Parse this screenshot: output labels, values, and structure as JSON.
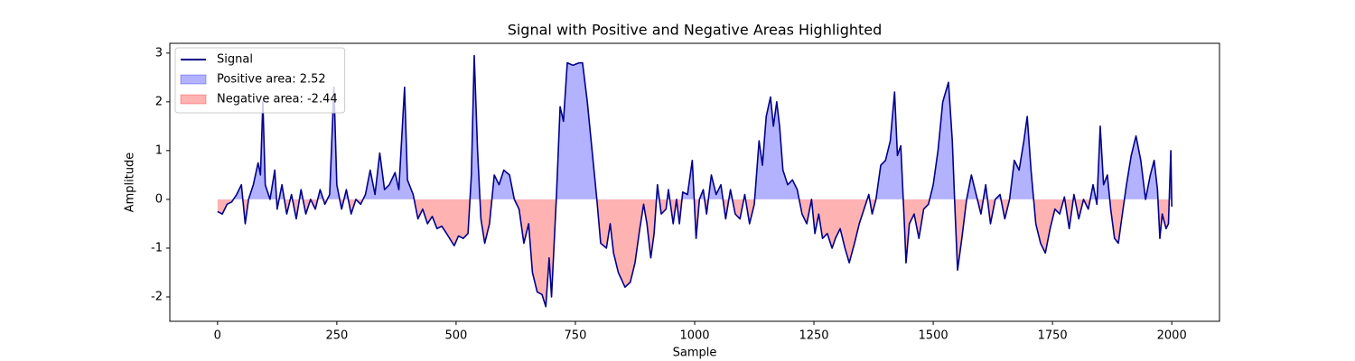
{
  "chart_data": {
    "type": "line",
    "title": "Signal with Positive and Negative Areas Highlighted",
    "xlabel": "Sample",
    "ylabel": "Amplitude",
    "xlim": [
      -100,
      2100
    ],
    "ylim": [
      -2.5,
      3.2
    ],
    "xticks": [
      0,
      250,
      500,
      750,
      1000,
      1250,
      1500,
      1750,
      2000
    ],
    "yticks": [
      -2,
      -1,
      0,
      1,
      2,
      3
    ],
    "legend": "upper left",
    "x": [
      0,
      10,
      20,
      30,
      40,
      50,
      58,
      65,
      75,
      85,
      90,
      95,
      100,
      110,
      120,
      125,
      135,
      145,
      155,
      165,
      175,
      185,
      195,
      205,
      215,
      225,
      235,
      244,
      250,
      260,
      270,
      280,
      290,
      300,
      310,
      320,
      330,
      340,
      350,
      360,
      372,
      380,
      392,
      398,
      410,
      420,
      430,
      440,
      450,
      460,
      470,
      480,
      496,
      505,
      515,
      525,
      532,
      538,
      545,
      552,
      560,
      570,
      580,
      590,
      600,
      612,
      622,
      632,
      642,
      652,
      660,
      670,
      680,
      688,
      695,
      700,
      710,
      718,
      725,
      733,
      745,
      758,
      765,
      775,
      785,
      795,
      803,
      815,
      823,
      830,
      840,
      854,
      865,
      875,
      885,
      893,
      900,
      908,
      915,
      922,
      930,
      940,
      945,
      955,
      962,
      968,
      975,
      985,
      995,
      1003,
      1010,
      1018,
      1025,
      1035,
      1045,
      1055,
      1065,
      1075,
      1085,
      1095,
      1105,
      1115,
      1125,
      1135,
      1142,
      1150,
      1159,
      1165,
      1172,
      1178,
      1185,
      1195,
      1205,
      1215,
      1225,
      1235,
      1245,
      1252,
      1260,
      1268,
      1278,
      1288,
      1295,
      1305,
      1315,
      1324,
      1335,
      1345,
      1355,
      1365,
      1372,
      1380,
      1390,
      1400,
      1410,
      1419,
      1425,
      1432,
      1440,
      1443,
      1450,
      1460,
      1470,
      1480,
      1490,
      1500,
      1510,
      1520,
      1532,
      1540,
      1546,
      1551,
      1560,
      1570,
      1580,
      1590,
      1600,
      1610,
      1620,
      1630,
      1640,
      1650,
      1660,
      1670,
      1680,
      1690,
      1697,
      1705,
      1715,
      1725,
      1735,
      1745,
      1755,
      1765,
      1775,
      1785,
      1795,
      1805,
      1815,
      1825,
      1835,
      1843,
      1850,
      1857,
      1865,
      1872,
      1880,
      1888,
      1895,
      1905,
      1915,
      1925,
      1935,
      1945,
      1955,
      1963,
      1970,
      1975,
      1980,
      1988,
      1993,
      1998,
      2000
    ],
    "series": [
      {
        "name": "Signal",
        "color": "#00008b",
        "values": [
          -0.25,
          -0.3,
          -0.1,
          -0.05,
          0.1,
          0.3,
          -0.5,
          0.0,
          0.3,
          0.75,
          0.5,
          2.0,
          0.3,
          0.0,
          0.6,
          -0.2,
          0.3,
          -0.3,
          0.1,
          -0.4,
          0.2,
          -0.3,
          0.0,
          -0.2,
          0.2,
          -0.1,
          0.1,
          2.3,
          0.3,
          -0.2,
          0.2,
          -0.3,
          0.0,
          -0.1,
          0.1,
          0.6,
          0.1,
          0.95,
          0.2,
          0.3,
          0.55,
          0.2,
          2.3,
          0.4,
          0.1,
          -0.4,
          -0.2,
          -0.5,
          -0.35,
          -0.6,
          -0.55,
          -0.7,
          -0.95,
          -0.75,
          -0.8,
          -0.7,
          0.5,
          2.95,
          1.0,
          -0.4,
          -0.9,
          -0.5,
          0.5,
          0.3,
          0.6,
          0.5,
          0.0,
          -0.2,
          -0.9,
          -0.5,
          -1.5,
          -1.9,
          -1.95,
          -2.2,
          -1.2,
          -2.0,
          0.0,
          1.9,
          1.6,
          2.8,
          2.75,
          2.8,
          2.8,
          2.0,
          1.0,
          0.0,
          -0.9,
          -1.0,
          -0.5,
          -1.1,
          -1.5,
          -1.8,
          -1.7,
          -1.3,
          -0.6,
          -0.1,
          -0.5,
          -1.2,
          -0.7,
          0.3,
          -0.3,
          -0.2,
          0.2,
          -0.5,
          0.0,
          -0.5,
          0.15,
          0.1,
          0.8,
          -0.8,
          0.0,
          0.2,
          -0.3,
          0.5,
          0.1,
          0.3,
          -0.4,
          0.2,
          -0.3,
          -0.4,
          0.1,
          -0.5,
          -0.1,
          1.2,
          0.7,
          1.7,
          2.1,
          1.5,
          2.0,
          1.5,
          0.6,
          0.3,
          0.4,
          0.2,
          -0.3,
          -0.5,
          0.0,
          -0.7,
          -0.3,
          -0.8,
          -0.7,
          -1.0,
          -0.8,
          -0.6,
          -1.0,
          -1.3,
          -0.9,
          -0.5,
          -0.2,
          0.1,
          -0.3,
          0.0,
          0.7,
          0.8,
          1.2,
          2.2,
          0.9,
          1.1,
          -0.6,
          -1.3,
          -0.5,
          -0.3,
          -0.8,
          -0.2,
          -0.1,
          0.3,
          1.0,
          2.0,
          2.4,
          1.2,
          -0.3,
          -1.45,
          -0.8,
          0.0,
          0.5,
          0.1,
          -0.3,
          0.3,
          -0.5,
          0.0,
          0.1,
          -0.4,
          0.0,
          0.8,
          0.6,
          1.2,
          1.7,
          0.6,
          -0.5,
          -0.9,
          -1.1,
          -0.6,
          -0.2,
          -0.3,
          0.05,
          -0.6,
          0.1,
          -0.4,
          0.0,
          -0.2,
          0.3,
          -0.1,
          1.5,
          0.3,
          0.5,
          -0.2,
          -0.8,
          -0.9,
          -0.4,
          0.3,
          0.9,
          1.3,
          0.8,
          0.0,
          0.5,
          0.8,
          0.2,
          -0.8,
          -0.3,
          -0.6,
          -0.5,
          1.0,
          -0.15
        ]
      }
    ],
    "fills": [
      {
        "name": "Positive area: 2.52",
        "color": "#0000ff",
        "side": "positive"
      },
      {
        "name": "Negative area: -2.44",
        "color": "#ff0000",
        "side": "negative"
      }
    ],
    "fill_alpha": 0.3
  }
}
